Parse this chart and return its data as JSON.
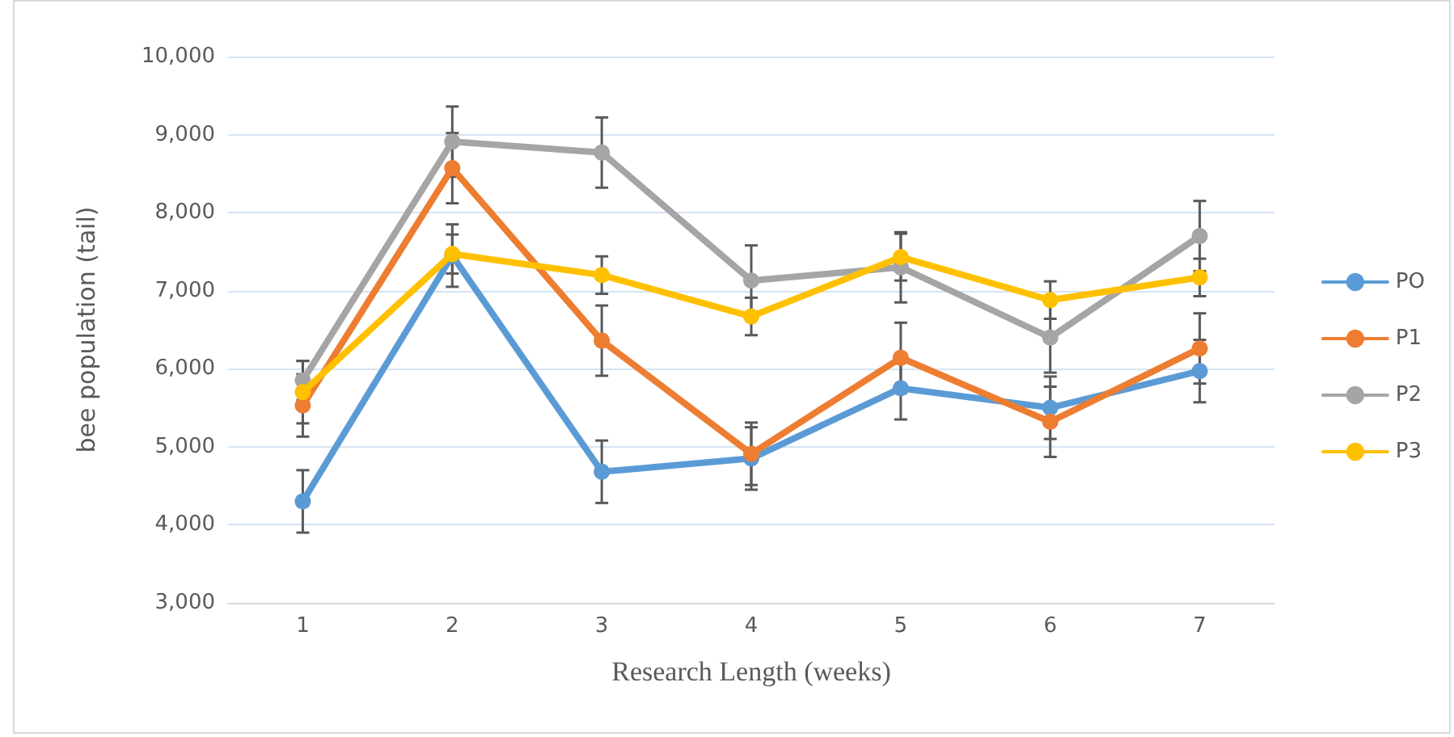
{
  "chart_data": {
    "type": "line",
    "xlabel": "Research Length (weeks)",
    "ylabel": "bee population (tail)",
    "categories": [
      "1",
      "2",
      "3",
      "4",
      "5",
      "6",
      "7"
    ],
    "ylim": [
      3000,
      10000
    ],
    "yticks": [
      {
        "value": 3000,
        "label": "3,000"
      },
      {
        "value": 4000,
        "label": "4,000"
      },
      {
        "value": 5000,
        "label": "5,000"
      },
      {
        "value": 6000,
        "label": "6,000"
      },
      {
        "value": 7000,
        "label": "7,000"
      },
      {
        "value": 8000,
        "label": "8,000"
      },
      {
        "value": 9000,
        "label": "9,000"
      },
      {
        "value": 10000,
        "label": "10,000"
      }
    ],
    "grid": "y",
    "legend": "right",
    "marker": "circle",
    "line_style": "solid",
    "series": [
      {
        "name": "PO",
        "color": "#5b9bd5",
        "values": [
          4300,
          7450,
          4680,
          4850,
          5750,
          5500,
          5970
        ],
        "errors": [
          400,
          400,
          400,
          400,
          400,
          400,
          400
        ]
      },
      {
        "name": "P1",
        "color": "#ed7d31",
        "values": [
          5530,
          8570,
          6360,
          4910,
          6140,
          5320,
          6260
        ],
        "errors": [
          400,
          450,
          450,
          400,
          450,
          450,
          450
        ]
      },
      {
        "name": "P2",
        "color": "#a5a5a5",
        "values": [
          5850,
          8910,
          8770,
          7130,
          7300,
          6400,
          7700
        ],
        "errors": [
          250,
          450,
          450,
          450,
          450,
          450,
          450
        ]
      },
      {
        "name": "P3",
        "color": "#ffc000",
        "values": [
          5700,
          7470,
          7200,
          6670,
          7430,
          6880,
          7170
        ],
        "errors": [
          400,
          250,
          240,
          240,
          300,
          240,
          240
        ]
      }
    ]
  }
}
